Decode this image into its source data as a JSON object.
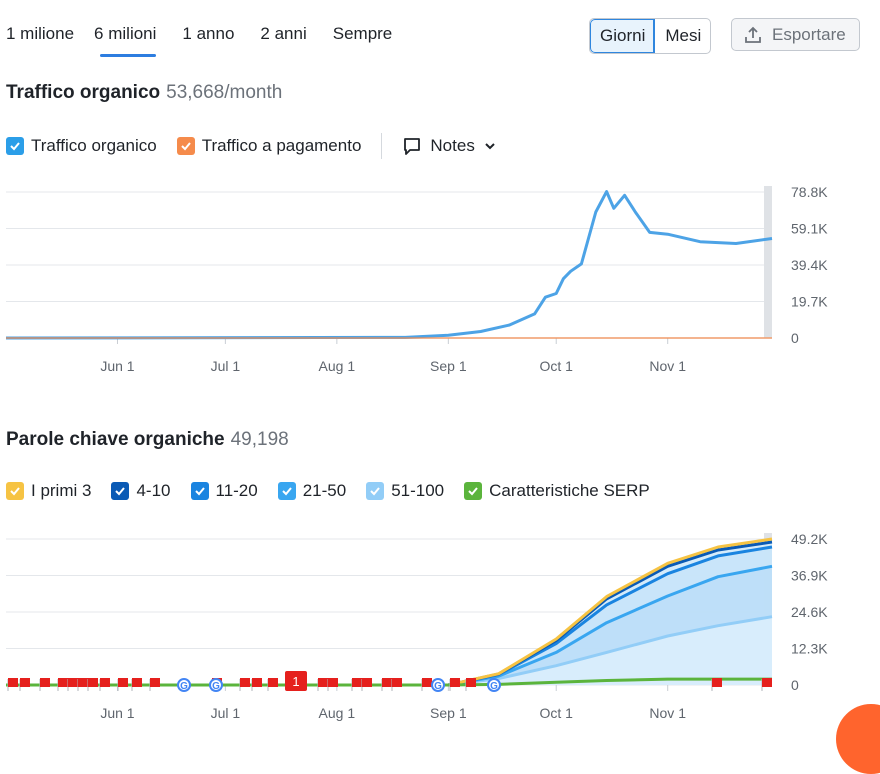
{
  "tabs": [
    "1 milione",
    "6 milioni",
    "1 anno",
    "2 anni",
    "Sempre"
  ],
  "active_tab": "6 milioni",
  "granularity": {
    "days": "Giorni",
    "months": "Mesi"
  },
  "export_label": "Esportare",
  "traffic": {
    "title": "Traffico organico",
    "value": "53,668/month",
    "legend": [
      {
        "label": "Traffico organico",
        "color": "#2b9ee8"
      },
      {
        "label": "Traffico a pagamento",
        "color": "#f58b4b"
      }
    ],
    "notes_label": "Notes"
  },
  "keywords": {
    "title": "Parole chiave organiche",
    "value": "49,198",
    "legend": [
      {
        "label": "I primi 3",
        "color": "#f6c343"
      },
      {
        "label": "4-10",
        "color": "#0a5ab5"
      },
      {
        "label": "11-20",
        "color": "#1a84e0"
      },
      {
        "label": "21-50",
        "color": "#39a6f0"
      },
      {
        "label": "51-100",
        "color": "#92cdf7"
      },
      {
        "label": "Caratteristiche SERP",
        "color": "#5bb43c"
      }
    ]
  },
  "chart_data": [
    {
      "type": "line",
      "title": "Traffico organico",
      "x_ticks": [
        "Jun 1",
        "Jul 1",
        "Aug 1",
        "Sep 1",
        "Oct 1",
        "Nov 1"
      ],
      "y_ticks": [
        "78.8K",
        "59.1K",
        "39.4K",
        "19.7K",
        "0"
      ],
      "ylim": [
        0,
        78800
      ],
      "grid": true,
      "series": [
        {
          "name": "Traffico organico",
          "color": "#4da3e6",
          "points": [
            [
              "2024-05-01",
              0
            ],
            [
              "2024-08-20",
              300
            ],
            [
              "2024-09-01",
              1500
            ],
            [
              "2024-09-10",
              3500
            ],
            [
              "2024-09-18",
              7000
            ],
            [
              "2024-09-25",
              13000
            ],
            [
              "2024-09-28",
              22000
            ],
            [
              "2024-10-01",
              24000
            ],
            [
              "2024-10-03",
              32000
            ],
            [
              "2024-10-05",
              36000
            ],
            [
              "2024-10-08",
              40000
            ],
            [
              "2024-10-12",
              68000
            ],
            [
              "2024-10-15",
              79000
            ],
            [
              "2024-10-17",
              70000
            ],
            [
              "2024-10-20",
              77000
            ],
            [
              "2024-10-23",
              68000
            ],
            [
              "2024-10-27",
              57000
            ],
            [
              "2024-11-01",
              56000
            ],
            [
              "2024-11-10",
              52000
            ],
            [
              "2024-11-20",
              51000
            ],
            [
              "2024-11-30",
              53700
            ]
          ]
        },
        {
          "name": "Traffico a pagamento",
          "color": "#f58b4b",
          "points": [
            [
              "2024-05-01",
              0
            ],
            [
              "2024-11-30",
              0
            ]
          ]
        }
      ]
    },
    {
      "type": "area",
      "title": "Parole chiave organiche",
      "x_ticks": [
        "Jun 1",
        "Jul 1",
        "Aug 1",
        "Sep 1",
        "Oct 1",
        "Nov 1"
      ],
      "y_ticks": [
        "49.2K",
        "36.9K",
        "24.6K",
        "12.3K",
        "0"
      ],
      "ylim": [
        0,
        49200
      ],
      "grid": true,
      "dates": [
        "2024-05-01",
        "2024-09-01",
        "2024-09-15",
        "2024-10-01",
        "2024-10-15",
        "2024-11-01",
        "2024-11-15",
        "2024-11-30"
      ],
      "series": [
        {
          "name": "51-100",
          "color": "#92cdf7",
          "values": [
            0,
            0,
            2200,
            6500,
            11000,
            16500,
            20000,
            23000
          ]
        },
        {
          "name": "21-50",
          "color": "#39a6f0",
          "values": [
            0,
            0,
            3000,
            11000,
            21000,
            30000,
            36500,
            40000
          ]
        },
        {
          "name": "11-20",
          "color": "#1a84e0",
          "values": [
            0,
            0,
            3500,
            14000,
            27000,
            37500,
            43500,
            46500
          ]
        },
        {
          "name": "4-10",
          "color": "#0a5ab5",
          "values": [
            0,
            0,
            3700,
            15000,
            29000,
            40000,
            45500,
            48200
          ]
        },
        {
          "name": "I primi 3",
          "color": "#f6c343",
          "values": [
            0,
            0,
            3800,
            15500,
            29800,
            41000,
            46500,
            49200
          ]
        },
        {
          "name": "Caratteristiche SERP",
          "color": "#5bb43c",
          "values": [
            0,
            0,
            200,
            900,
            1500,
            2000,
            2000,
            2000
          ]
        }
      ],
      "annotation_badge": "1"
    }
  ]
}
